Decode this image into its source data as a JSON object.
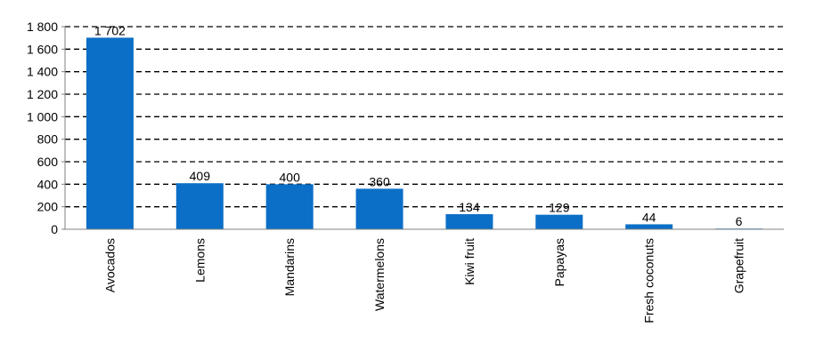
{
  "chart_data": {
    "type": "bar",
    "categories": [
      "Avocados",
      "Lemons",
      "Mandarins",
      "Watermelons",
      "Kiwi fruit",
      "Papayas",
      "Fresh coconuts",
      "Grapefruit"
    ],
    "values": [
      1702,
      409,
      400,
      360,
      134,
      129,
      44,
      6
    ],
    "data_labels": [
      "1 702",
      "409",
      "400",
      "360",
      "134",
      "129",
      "44",
      "6"
    ],
    "y_ticks": [
      0,
      200,
      400,
      600,
      800,
      1000,
      1200,
      1400,
      1600,
      1800
    ],
    "y_tick_labels": [
      "0",
      "200",
      "400",
      "600",
      "800",
      "1 000",
      "1 200",
      "1 400",
      "1 600",
      "1 800"
    ],
    "ylim": [
      0,
      1800
    ],
    "title": "",
    "xlabel": "",
    "ylabel": "",
    "grid": true,
    "bar_color": "#0B6FC7"
  }
}
